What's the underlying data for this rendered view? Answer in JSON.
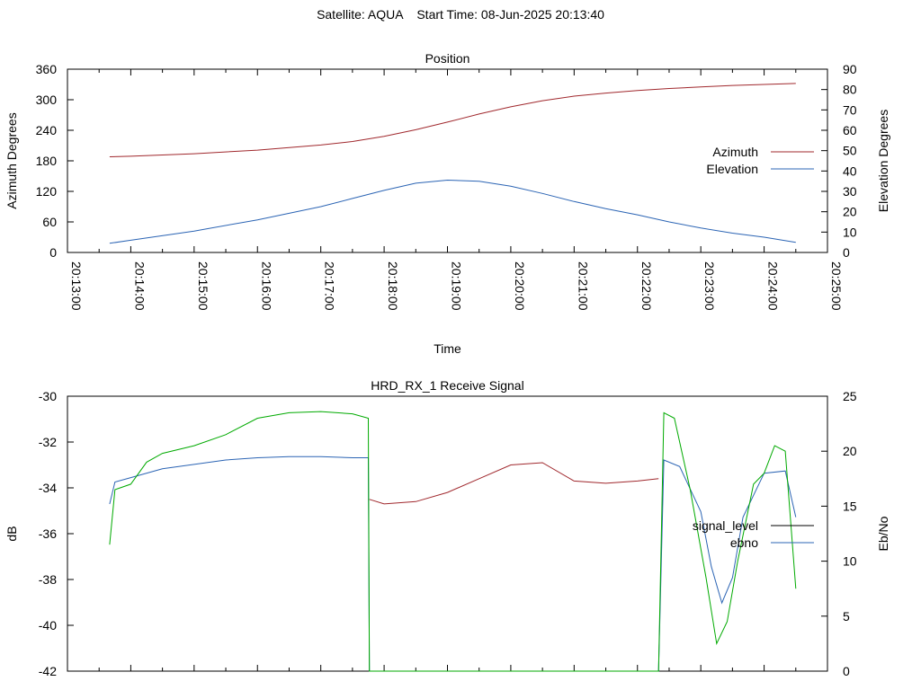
{
  "header": {
    "title": "Satellite: AQUA    Start Time: 08-Jun-2025 20:13:40"
  },
  "chart_data": [
    {
      "type": "line",
      "title": "Position",
      "xlabel": "Time",
      "ylabel": "Azimuth Degrees",
      "y2label": "Elevation Degrees",
      "xlim": [
        "20:13:00",
        "20:25:00"
      ],
      "xticks": [
        "20:13:00",
        "20:14:00",
        "20:15:00",
        "20:16:00",
        "20:17:00",
        "20:18:00",
        "20:19:00",
        "20:20:00",
        "20:21:00",
        "20:22:00",
        "20:23:00",
        "20:24:00",
        "20:25:00"
      ],
      "ylim": [
        0,
        360
      ],
      "yticks": [
        0,
        60,
        120,
        180,
        240,
        300,
        360
      ],
      "y2lim": [
        0,
        90
      ],
      "y2ticks": [
        0,
        10,
        20,
        30,
        40,
        50,
        60,
        70,
        80,
        90
      ],
      "grid": false,
      "legend_position": "right",
      "series": [
        {
          "name": "Azimuth",
          "axis": "y",
          "color": "#a0282d",
          "x": [
            "20:13:40",
            "20:14:00",
            "20:15:00",
            "20:16:00",
            "20:17:00",
            "20:17:30",
            "20:18:00",
            "20:18:30",
            "20:19:00",
            "20:19:30",
            "20:20:00",
            "20:20:30",
            "20:21:00",
            "20:21:30",
            "20:22:00",
            "20:22:30",
            "20:23:00",
            "20:23:30",
            "20:24:00",
            "20:24:30"
          ],
          "values": [
            188,
            189,
            194,
            201,
            211,
            218,
            228,
            241,
            256,
            272,
            286,
            298,
            307,
            313,
            318,
            322,
            325,
            328,
            330,
            332
          ]
        },
        {
          "name": "Elevation",
          "axis": "y2",
          "color": "#2b64b4",
          "x": [
            "20:13:40",
            "20:14:00",
            "20:15:00",
            "20:16:00",
            "20:17:00",
            "20:17:30",
            "20:18:00",
            "20:18:30",
            "20:19:00",
            "20:19:30",
            "20:20:00",
            "20:20:30",
            "20:21:00",
            "20:21:30",
            "20:22:00",
            "20:22:30",
            "20:23:00",
            "20:23:30",
            "20:24:00",
            "20:24:30"
          ],
          "values": [
            4.5,
            6,
            10.5,
            16,
            22.5,
            26.5,
            30.5,
            34,
            35.5,
            35,
            32.5,
            29,
            25,
            21.5,
            18.5,
            15,
            12,
            9.5,
            7.5,
            5
          ]
        }
      ]
    },
    {
      "type": "line",
      "title": "HRD_RX_1 Receive Signal",
      "ylabel": "dB",
      "y2label": "Eb/No",
      "ylim": [
        -42,
        -30
      ],
      "yticks": [
        -42,
        -40,
        -38,
        -36,
        -34,
        -32,
        -30
      ],
      "y2lim": [
        0,
        25
      ],
      "y2ticks": [
        0,
        5,
        10,
        15,
        20,
        25
      ],
      "grid": false,
      "legend_position": "right",
      "series": [
        {
          "name": "signal_level",
          "axis": "y",
          "color": "#000000",
          "legend_only": true,
          "x": [],
          "values": []
        },
        {
          "name": "ebno",
          "axis": "y2",
          "color": "#2b64b4",
          "x": [
            "20:13:40",
            "20:13:45",
            "20:14:00",
            "20:14:30",
            "20:15:00",
            "20:15:30",
            "20:16:00",
            "20:16:30",
            "20:17:00",
            "20:17:30",
            "20:17:45",
            "20:17:46",
            "20:22:20",
            "20:22:25",
            "20:22:40",
            "20:23:00",
            "20:23:10",
            "20:23:20",
            "20:23:30",
            "20:23:40",
            "20:24:00",
            "20:24:20",
            "20:24:30"
          ],
          "values": [
            15.2,
            17.2,
            17.6,
            18.4,
            18.8,
            19.2,
            19.4,
            19.5,
            19.5,
            19.4,
            19.4,
            0,
            0,
            19.2,
            18.6,
            14.5,
            9.5,
            6.2,
            8.5,
            14,
            18,
            18.2,
            14
          ]
        },
        {
          "name": "",
          "axis": "y2",
          "color": "#00aa00",
          "x": [
            "20:13:40",
            "20:13:45",
            "20:14:00",
            "20:14:15",
            "20:14:30",
            "20:15:00",
            "20:15:30",
            "20:16:00",
            "20:16:30",
            "20:17:00",
            "20:17:30",
            "20:17:45",
            "20:17:46",
            "20:22:20",
            "20:22:25",
            "20:22:35",
            "20:22:50",
            "20:23:05",
            "20:23:15",
            "20:23:25",
            "20:23:35",
            "20:23:50",
            "20:24:00",
            "20:24:10",
            "20:24:20",
            "20:24:30"
          ],
          "values": [
            11.5,
            16.5,
            17,
            19,
            19.8,
            20.5,
            21.5,
            23,
            23.5,
            23.6,
            23.4,
            23,
            0,
            0,
            23.5,
            23,
            16.5,
            8.5,
            2.5,
            4.5,
            10,
            17,
            18,
            20.5,
            20,
            7.5
          ]
        },
        {
          "name": "",
          "axis": "y",
          "color": "#a0282d",
          "x": [
            "20:17:46",
            "20:18:00",
            "20:18:30",
            "20:19:00",
            "20:19:30",
            "20:20:00",
            "20:20:30",
            "20:21:00",
            "20:21:30",
            "20:22:00",
            "20:22:20"
          ],
          "values": [
            -34.5,
            -34.7,
            -34.6,
            -34.2,
            -33.6,
            -33.0,
            -32.9,
            -33.7,
            -33.8,
            -33.7,
            -33.6
          ]
        }
      ]
    }
  ]
}
